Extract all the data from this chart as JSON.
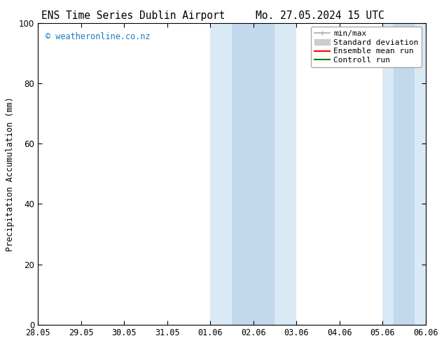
{
  "title_left": "ENS Time Series Dublin Airport",
  "title_right": "Mo. 27.05.2024 15 UTC",
  "ylabel": "Precipitation Accumulation (mm)",
  "xlabel": "",
  "ylim": [
    0,
    100
  ],
  "yticks": [
    0,
    20,
    40,
    60,
    80,
    100
  ],
  "xtick_labels": [
    "28.05",
    "29.05",
    "30.05",
    "31.05",
    "01.06",
    "02.06",
    "03.06",
    "04.06",
    "05.06",
    "06.06"
  ],
  "background_color": "#ffffff",
  "plot_bg_color": "#ffffff",
  "shaded_regions": [
    {
      "xstart": 4.0,
      "xend": 6.0,
      "color": "#daeaf5"
    },
    {
      "xstart": 8.0,
      "xend": 9.0,
      "color": "#daeaf5"
    }
  ],
  "shaded_inner_regions": [
    {
      "xstart": 4.5,
      "xend": 5.5,
      "color": "#c2d8ed"
    },
    {
      "xstart": 8.25,
      "xend": 8.75,
      "color": "#c2d8ed"
    }
  ],
  "watermark_text": "© weatheronline.co.nz",
  "watermark_color": "#1a7bbf",
  "legend_items": [
    {
      "label": "min/max",
      "color": "#aaaaaa",
      "lw": 1.2
    },
    {
      "label": "Standard deviation",
      "color": "#cccccc",
      "lw": 6
    },
    {
      "label": "Ensemble mean run",
      "color": "#ff0000",
      "lw": 1.5
    },
    {
      "label": "Controll run",
      "color": "#008000",
      "lw": 1.5
    }
  ],
  "title_fontsize": 10.5,
  "tick_fontsize": 8.5,
  "ylabel_fontsize": 8.5,
  "legend_fontsize": 8
}
